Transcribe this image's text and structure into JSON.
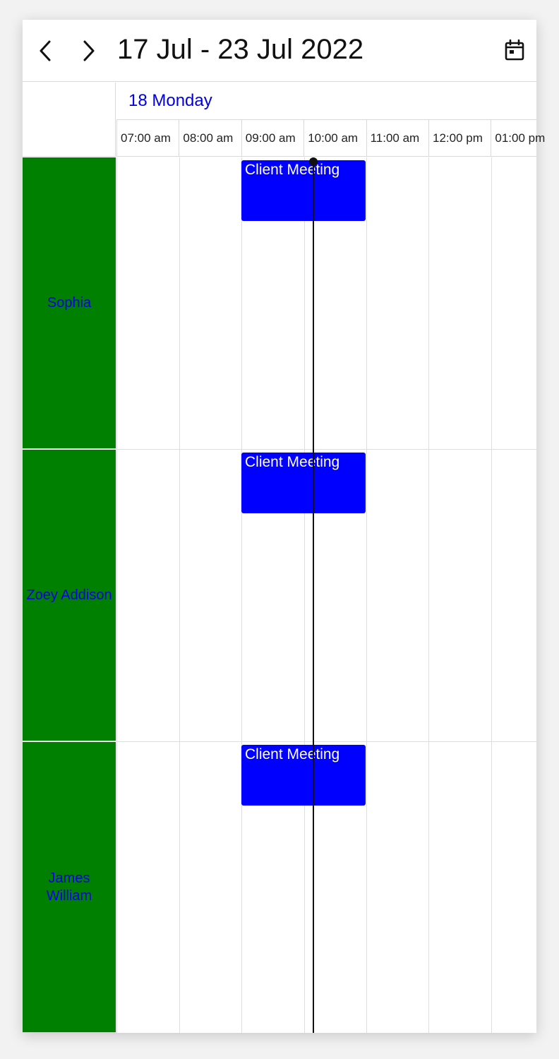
{
  "header": {
    "title": "17 Jul - 23 Jul 2022",
    "prev_icon": "chevron-left-icon",
    "next_icon": "chevron-right-icon",
    "calendar_icon": "calendar-icon"
  },
  "day_header": {
    "label": "18 Monday"
  },
  "time_slots": [
    "07:00 am",
    "08:00 am",
    "09:00 am",
    "10:00 am",
    "11:00 am",
    "12:00 pm",
    "01:00 pm"
  ],
  "resources": [
    {
      "name": "Sophia"
    },
    {
      "name": "Zoey Addison"
    },
    {
      "name": "James William"
    }
  ],
  "appointments": [
    {
      "title": "Client Meeting",
      "resource": "Sophia",
      "start": "09:00 am",
      "end": "11:00 am"
    },
    {
      "title": "Client Meeting",
      "resource": "Zoey Addison",
      "start": "09:00 am",
      "end": "11:00 am"
    },
    {
      "title": "Client Meeting",
      "resource": "James William",
      "start": "09:00 am",
      "end": "11:00 am"
    }
  ],
  "colors": {
    "resource_bg": "#008000",
    "resource_text": "#0000e0",
    "appointment_bg": "#0000ff",
    "appointment_text": "#ffffff",
    "day_label": "#0000e0",
    "current_time_line": "#111111"
  }
}
